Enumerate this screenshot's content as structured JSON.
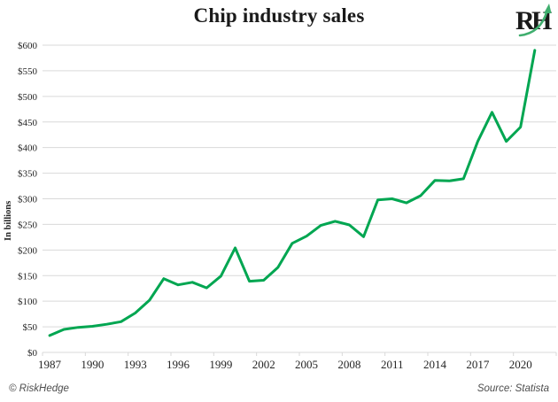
{
  "header": {
    "title": "Chip industry sales",
    "logo": {
      "letters": [
        "R",
        "H"
      ],
      "letter_color": "#1a1a1a",
      "swoosh_color": "#3fae6e"
    }
  },
  "chart_data": {
    "type": "line",
    "title": "Chip industry sales",
    "ylabel": "In billions",
    "x": [
      1987,
      1988,
      1989,
      1990,
      1991,
      1992,
      1993,
      1994,
      1995,
      1996,
      1997,
      1998,
      1999,
      2000,
      2001,
      2002,
      2003,
      2004,
      2005,
      2006,
      2007,
      2008,
      2009,
      2010,
      2011,
      2012,
      2013,
      2014,
      2015,
      2016,
      2017,
      2018,
      2019,
      2020,
      2021
    ],
    "values": [
      33,
      45,
      49,
      51,
      55,
      60,
      77,
      102,
      144,
      132,
      137,
      126,
      149,
      204,
      139,
      141,
      166,
      213,
      227,
      248,
      256,
      249,
      226,
      298,
      300,
      292,
      306,
      336,
      335,
      339,
      412,
      469,
      412,
      440,
      590
    ],
    "series_name": "Chip industry sales (billions USD)",
    "ylim": [
      0,
      600
    ],
    "ytick_step": 50,
    "ytick_labels": [
      "$0",
      "$50",
      "$100",
      "$150",
      "$200",
      "$250",
      "$300",
      "$350",
      "$400",
      "$450",
      "$500",
      "$550",
      "$600"
    ],
    "xtick_labels": [
      "1987",
      "1990",
      "1993",
      "1996",
      "1999",
      "2002",
      "2005",
      "2008",
      "2011",
      "2014",
      "2017",
      "2020"
    ],
    "xtick_interval_years": 3,
    "grid": true,
    "legend": "none",
    "line_color": "#00a651",
    "grid_color": "#d9d9d9"
  },
  "footer": {
    "copyright": "© RiskHedge",
    "source": "Source: Statista"
  }
}
